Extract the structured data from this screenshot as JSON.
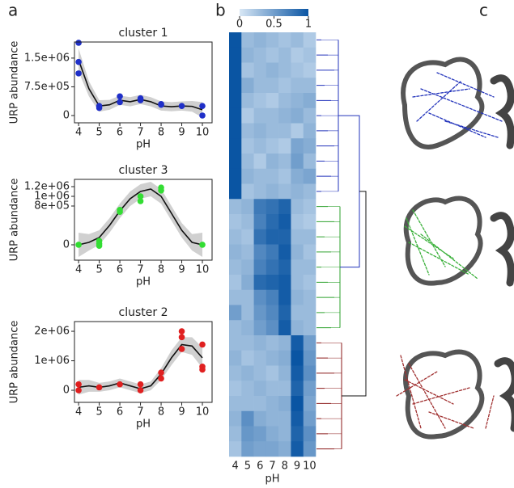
{
  "panel_labels": [
    "a",
    "b",
    "c"
  ],
  "chart_data": [
    {
      "type": "scatter",
      "title": "cluster 1",
      "x_label": "pH",
      "y_label": "URP abundance",
      "color": "#1f2fc8",
      "xlim": [
        3.8,
        10.47
      ],
      "xticks": [
        4,
        5,
        6,
        7,
        8,
        9,
        10
      ],
      "ylim": [
        -190000,
        1920000
      ],
      "yticks": [
        {
          "value": 1500000,
          "label": "1.5e+06"
        },
        {
          "value": 750000,
          "label": "7.5e+05"
        },
        0
      ],
      "points": {
        "x": [
          4,
          4,
          4,
          5,
          5,
          6,
          6,
          7,
          7,
          8,
          8,
          9,
          10,
          10
        ],
        "y": [
          1900000.0,
          1400000.0,
          1100000.0,
          200000.0,
          250000.0,
          500000.0,
          350000.0,
          450000.0,
          400000.0,
          300000.0,
          280000.0,
          250000.0,
          250000.0,
          0
        ]
      },
      "fit": {
        "x": [
          4,
          4.5,
          5,
          5.5,
          6,
          6.5,
          7,
          7.5,
          8,
          8.5,
          9,
          9.5,
          10
        ],
        "y": [
          1450000.0,
          700000.0,
          250000.0,
          280000.0,
          400000.0,
          360000.0,
          420000.0,
          360000.0,
          250000.0,
          230000.0,
          250000.0,
          240000.0,
          150000.0
        ],
        "lower": [
          1150000.0,
          500000.0,
          100000.0,
          150000.0,
          280000.0,
          240000.0,
          300000.0,
          240000.0,
          130000.0,
          110000.0,
          130000.0,
          100000.0,
          -50000.0
        ],
        "upper": [
          1750000.0,
          900000.0,
          400000.0,
          410000.0,
          520000.0,
          480000.0,
          540000.0,
          480000.0,
          370000.0,
          350000.0,
          370000.0,
          380000.0,
          350000.0
        ]
      }
    },
    {
      "type": "scatter",
      "title": "cluster 3",
      "x_label": "pH",
      "y_label": "URP abundance",
      "color": "#33dd33",
      "xlim": [
        3.8,
        10.47
      ],
      "xticks": [
        4,
        5,
        6,
        7,
        8,
        9,
        10
      ],
      "ylim": [
        -317000,
        1350000
      ],
      "yticks": [
        {
          "value": 1200000,
          "label": "1.2e+06"
        },
        {
          "value": 1000000,
          "label": "1e+06"
        },
        {
          "value": 800000,
          "label": "8e+05"
        },
        0
      ],
      "points": {
        "x": [
          4,
          5,
          5,
          5,
          6,
          6,
          7,
          7,
          8,
          8,
          10
        ],
        "y": [
          0,
          20000.0,
          80000.0,
          -20000.0,
          720000.0,
          680000.0,
          1000000.0,
          900000.0,
          1180000.0,
          1120000.0,
          0
        ]
      },
      "fit": {
        "x": [
          4,
          4.5,
          5,
          5.5,
          6,
          6.5,
          7,
          7.5,
          8,
          8.5,
          9,
          9.5,
          10
        ],
        "y": [
          0,
          50000.0,
          150000.0,
          400000.0,
          700000.0,
          950000.0,
          1100000.0,
          1150000.0,
          1000000.0,
          650000.0,
          300000.0,
          50000.0,
          0
        ],
        "lower": [
          -250000.0,
          -120000.0,
          0,
          250000.0,
          550000.0,
          800000.0,
          950000.0,
          1000000.0,
          850000.0,
          500000.0,
          150000.0,
          -120000.0,
          -250000.0
        ],
        "upper": [
          250000.0,
          220000.0,
          300000.0,
          550000.0,
          850000.0,
          1100000.0,
          1250000.0,
          1300000.0,
          1150000.0,
          800000.0,
          450000.0,
          220000.0,
          250000.0
        ]
      }
    },
    {
      "type": "scatter",
      "title": "cluster 2",
      "x_label": "pH",
      "y_label": "URP abundance",
      "color": "#e02020",
      "xlim": [
        3.8,
        10.47
      ],
      "xticks": [
        4,
        5,
        6,
        7,
        8,
        9,
        10
      ],
      "ylim": [
        -410000,
        2330000
      ],
      "yticks": [
        {
          "value": 2000000,
          "label": "2e+06"
        },
        {
          "value": 1000000,
          "label": "1e+06"
        },
        0
      ],
      "points": {
        "x": [
          4,
          4,
          5,
          6,
          7,
          7,
          8,
          8,
          9,
          9,
          9,
          10,
          10,
          10
        ],
        "y": [
          200000.0,
          0,
          100000.0,
          200000.0,
          0,
          200000.0,
          400000.0,
          600000.0,
          2000000.0,
          1800000.0,
          1400000.0,
          1550000.0,
          800000.0,
          700000.0
        ]
      },
      "fit": {
        "x": [
          4,
          4.5,
          5,
          5.5,
          6,
          6.5,
          7,
          7.5,
          8,
          8.5,
          9,
          9.5,
          10
        ],
        "y": [
          100000.0,
          150000.0,
          100000.0,
          150000.0,
          250000.0,
          150000.0,
          50000.0,
          150000.0,
          550000.0,
          1100000.0,
          1550000.0,
          1500000.0,
          1100000.0
        ],
        "lower": [
          -150000.0,
          -50000.0,
          -50000.0,
          0,
          100000.0,
          0,
          -100000.0,
          0,
          350000.0,
          850000.0,
          1300000.0,
          1200000.0,
          750000.0
        ],
        "upper": [
          350000.0,
          350000.0,
          250000.0,
          300000.0,
          400000.0,
          300000.0,
          200000.0,
          300000.0,
          750000.0,
          1350000.0,
          1800000.0,
          1800000.0,
          1450000.0
        ]
      }
    },
    {
      "type": "heatmap",
      "x_label": "pH",
      "categories": [
        "4",
        "5",
        "6",
        "7",
        "8",
        "9",
        "10"
      ],
      "vlim": [
        0,
        1
      ],
      "colorbar_ticks": [
        0,
        0.5,
        1
      ],
      "colors": [
        "#d8e7f5",
        "#0a55a3"
      ],
      "dendrogram_colors": [
        "#2233bb",
        "#2ca02c",
        "#8b1a1a",
        "#111111"
      ],
      "values": [
        [
          1,
          0.3,
          0.35,
          0.3,
          0.25,
          0.3,
          0.2
        ],
        [
          1,
          0.35,
          0.3,
          0.25,
          0.3,
          0.2,
          0.25
        ],
        [
          1,
          0.25,
          0.3,
          0.35,
          0.3,
          0.25,
          0.2
        ],
        [
          1,
          0.4,
          0.3,
          0.3,
          0.25,
          0.3,
          0.3
        ],
        [
          1,
          0.3,
          0.25,
          0.2,
          0.3,
          0.35,
          0.4
        ],
        [
          1,
          0.2,
          0.3,
          0.3,
          0.35,
          0.4,
          0.3
        ],
        [
          1,
          0.3,
          0.35,
          0.3,
          0.3,
          0.2,
          0.35
        ],
        [
          1,
          0.25,
          0.3,
          0.25,
          0.2,
          0.45,
          0.4
        ],
        [
          1,
          0.3,
          0.2,
          0.35,
          0.3,
          0.5,
          0.3
        ],
        [
          1,
          0.35,
          0.3,
          0.3,
          0.25,
          0.4,
          0.45
        ],
        [
          1,
          0.25,
          0.3,
          0.35,
          0.3,
          0.35,
          0.3
        ],
        [
          0.3,
          0.35,
          0.75,
          0.8,
          0.9,
          0.3,
          0.25
        ],
        [
          0.25,
          0.3,
          0.7,
          0.85,
          0.95,
          0.25,
          0.2
        ],
        [
          0.3,
          0.25,
          0.8,
          0.9,
          0.9,
          0.3,
          0.3
        ],
        [
          0.35,
          0.3,
          0.65,
          0.75,
          0.95,
          0.35,
          0.25
        ],
        [
          0.3,
          0.35,
          0.7,
          0.8,
          0.9,
          0.3,
          0.3
        ],
        [
          0.25,
          0.4,
          0.85,
          0.9,
          0.95,
          0.3,
          0.25
        ],
        [
          0.3,
          0.3,
          0.6,
          0.7,
          0.95,
          0.35,
          0.3
        ],
        [
          0.5,
          0.3,
          0.55,
          0.65,
          0.9,
          0.3,
          0.3
        ],
        [
          0.3,
          0.35,
          0.5,
          0.6,
          0.95,
          0.35,
          0.3
        ],
        [
          0.3,
          0.3,
          0.35,
          0.3,
          0.35,
          0.95,
          0.5
        ],
        [
          0.35,
          0.25,
          0.3,
          0.35,
          0.4,
          1,
          0.55
        ],
        [
          0.3,
          0.35,
          0.3,
          0.25,
          0.35,
          0.95,
          0.6
        ],
        [
          0.25,
          0.3,
          0.35,
          0.3,
          0.3,
          0.9,
          0.5
        ],
        [
          0.3,
          0.3,
          0.3,
          0.35,
          0.4,
          1,
          0.45
        ],
        [
          0.35,
          0.6,
          0.4,
          0.35,
          0.35,
          0.95,
          0.5
        ],
        [
          0.3,
          0.55,
          0.5,
          0.4,
          0.35,
          0.9,
          0.6
        ],
        [
          0.25,
          0.5,
          0.45,
          0.45,
          0.4,
          0.95,
          0.55
        ]
      ]
    }
  ]
}
